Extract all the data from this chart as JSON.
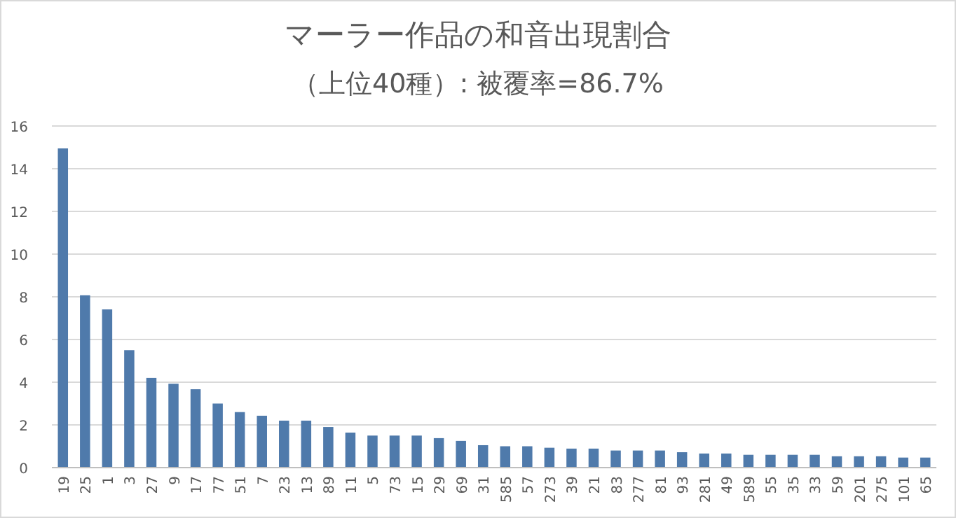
{
  "chart_data": {
    "type": "bar",
    "title": "マーラー作品の和音出現割合",
    "subtitle": "（上位40種）: 被覆率=86.7%",
    "categories": [
      "19",
      "25",
      "1",
      "3",
      "27",
      "9",
      "17",
      "77",
      "51",
      "7",
      "23",
      "13",
      "89",
      "11",
      "5",
      "73",
      "15",
      "29",
      "69",
      "31",
      "585",
      "57",
      "273",
      "39",
      "21",
      "83",
      "277",
      "81",
      "93",
      "281",
      "49",
      "589",
      "55",
      "35",
      "33",
      "59",
      "201",
      "275",
      "101",
      "65"
    ],
    "values": [
      14.95,
      8.07,
      7.41,
      5.5,
      4.2,
      3.93,
      3.67,
      3.0,
      2.6,
      2.43,
      2.2,
      2.2,
      1.9,
      1.64,
      1.5,
      1.5,
      1.5,
      1.38,
      1.25,
      1.05,
      1.0,
      1.0,
      0.93,
      0.89,
      0.89,
      0.8,
      0.8,
      0.8,
      0.72,
      0.66,
      0.66,
      0.6,
      0.6,
      0.6,
      0.6,
      0.53,
      0.53,
      0.53,
      0.47,
      0.47
    ],
    "color": "#4f7aab",
    "ylim": [
      0,
      16
    ],
    "yticks": [
      0,
      2,
      4,
      6,
      8,
      10,
      12,
      14,
      16
    ],
    "grid": "y"
  }
}
